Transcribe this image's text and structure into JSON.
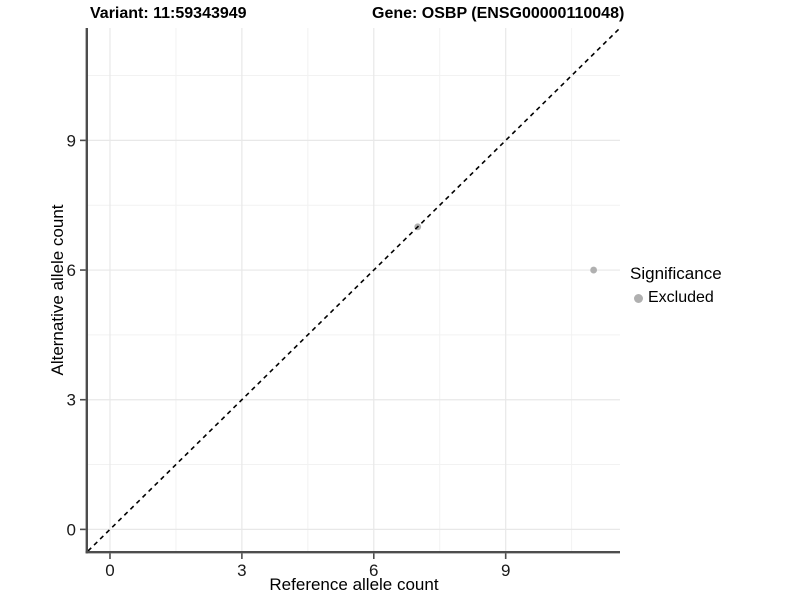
{
  "header": {
    "variant_title": "Variant: 11:59343949",
    "gene_title": "Gene: OSBP (ENSG00000110048)"
  },
  "axes": {
    "x_label": "Reference allele count",
    "y_label": "Alternative allele count"
  },
  "legend": {
    "title": "Significance",
    "items": [
      {
        "label": "Excluded",
        "color": "#b0b0b0"
      }
    ]
  },
  "colors": {
    "background": "#ffffff",
    "axis_line": "#4d4d4d",
    "grid_major": "#e8e8e8",
    "grid_minor": "#f2f2f2",
    "tick_text": "#1a1a1a",
    "point": "#b0b0b0",
    "reference_line": "#000000"
  },
  "chart_data": {
    "type": "scatter",
    "title": "Variant: 11:59343949 | Gene: OSBP (ENSG00000110048)",
    "xlabel": "Reference allele count",
    "ylabel": "Alternative allele count",
    "xlim": [
      -0.5,
      11.6
    ],
    "ylim": [
      -0.5,
      11.6
    ],
    "xticks": [
      0,
      3,
      6,
      9
    ],
    "yticks": [
      0,
      3,
      6,
      9
    ],
    "xminor": [
      1.5,
      4.5,
      7.5,
      10.5
    ],
    "yminor": [
      1.5,
      4.5,
      7.5,
      10.5
    ],
    "grid": "major+minor",
    "legend_position": "right",
    "reference_line": {
      "type": "identity",
      "slope": 1,
      "intercept": 0,
      "style": "dashed",
      "color": "#000000"
    },
    "series": [
      {
        "name": "Excluded",
        "color": "#b0b0b0",
        "marker": "circle",
        "points": [
          {
            "x": 7,
            "y": 7
          },
          {
            "x": 11,
            "y": 6
          }
        ]
      }
    ]
  }
}
